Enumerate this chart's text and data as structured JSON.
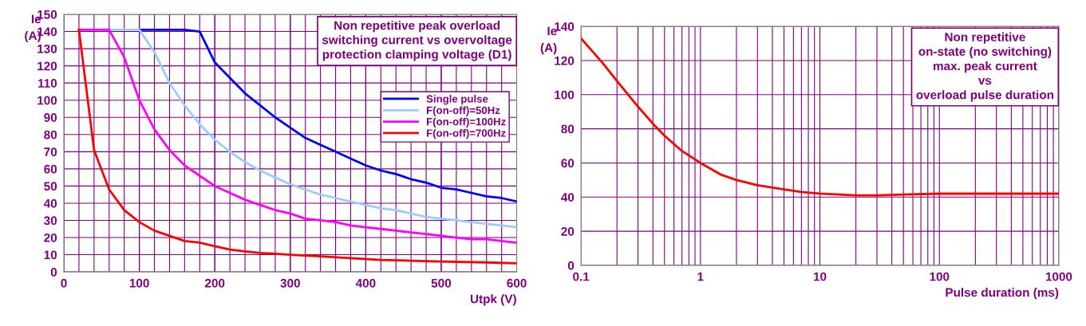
{
  "chart_data": [
    {
      "type": "line",
      "xlabel": "Utpk (V)",
      "ylabel": "Ie\n(A)",
      "xlim": [
        0,
        600
      ],
      "ylim": [
        0,
        150
      ],
      "xticks": [
        0,
        100,
        200,
        300,
        400,
        500,
        600
      ],
      "yticks": [
        0,
        10,
        20,
        30,
        40,
        50,
        60,
        70,
        80,
        90,
        100,
        110,
        120,
        130,
        140,
        150
      ],
      "grid": true,
      "legend": "top right",
      "marker": "none",
      "line_style": "solid",
      "annotations": [
        "Non repetitive peak overload\nswitching current vs overvoltage\nprotection clamping voltage (D1)"
      ],
      "series": [
        {
          "name": "Single pulse",
          "color": "#0000ff",
          "x": [
            100,
            160,
            180,
            200,
            220,
            240,
            260,
            280,
            300,
            320,
            340,
            360,
            380,
            400,
            420,
            440,
            460,
            480,
            500,
            520,
            540,
            560,
            580,
            600
          ],
          "values": [
            141,
            141,
            140,
            122,
            113,
            104,
            97,
            90,
            84,
            78,
            74,
            70,
            66,
            62,
            59,
            57,
            54,
            52,
            49,
            48,
            46,
            44,
            43,
            41
          ]
        },
        {
          "name": "F(on-off)=50Hz",
          "color": "#99ccff",
          "x": [
            60,
            100,
            120,
            140,
            160,
            180,
            200,
            220,
            240,
            260,
            280,
            300,
            320,
            340,
            360,
            380,
            400,
            420,
            440,
            460,
            480,
            500,
            520,
            540,
            560,
            580,
            600
          ],
          "values": [
            141,
            141,
            128,
            110,
            97,
            86,
            77,
            70,
            64,
            59,
            55,
            51,
            48,
            45,
            43,
            41,
            39,
            37,
            36,
            34,
            32,
            31,
            30,
            29,
            28,
            27,
            26
          ]
        },
        {
          "name": "F(on-off)=100Hz",
          "color": "#ff00ff",
          "x": [
            20,
            60,
            80,
            100,
            120,
            140,
            160,
            180,
            200,
            220,
            240,
            260,
            280,
            300,
            320,
            340,
            360,
            380,
            400,
            420,
            440,
            460,
            480,
            500,
            520,
            540,
            560,
            580,
            600
          ],
          "values": [
            141,
            141,
            125,
            100,
            83,
            71,
            62,
            56,
            50,
            46,
            42,
            39,
            36,
            34,
            31,
            30,
            29,
            27,
            26,
            25,
            24,
            23,
            22,
            21,
            20,
            19,
            19,
            18,
            17
          ]
        },
        {
          "name": "F(on-off)=700Hz",
          "color": "#ff0000",
          "x": [
            20,
            40,
            60,
            80,
            100,
            120,
            140,
            160,
            180,
            200,
            220,
            240,
            260,
            280,
            300,
            340,
            380,
            420,
            460,
            500,
            560,
            600
          ],
          "values": [
            141,
            71,
            48,
            36,
            29,
            24,
            21,
            18,
            17,
            15,
            13,
            12,
            11,
            10.5,
            10,
            9,
            8,
            7,
            6.5,
            6,
            5.5,
            5
          ]
        }
      ]
    },
    {
      "type": "line",
      "xlabel": "Pulse duration (ms)",
      "ylabel": "Ie\n(A)",
      "log": "x",
      "xlim": [
        0.1,
        1000
      ],
      "ylim": [
        0,
        140
      ],
      "xticks": [
        0.1,
        1,
        10,
        100,
        1000
      ],
      "yticks": [
        0,
        20,
        40,
        60,
        80,
        100,
        120,
        140
      ],
      "grid": true,
      "marker": "none",
      "line_style": "solid",
      "annotations": [
        "Non repetitive\non-state (no switching)\nmax. peak current\nvs\noverload pulse duration"
      ],
      "series": [
        {
          "color": "#ff0000",
          "x": [
            0.1,
            0.15,
            0.2,
            0.3,
            0.4,
            0.5,
            0.7,
            1,
            1.5,
            2,
            3,
            5,
            7,
            10,
            20,
            30,
            50,
            100,
            1000
          ],
          "values": [
            133,
            119,
            108,
            93,
            83,
            76,
            67,
            60,
            53,
            50,
            47,
            44.5,
            43,
            42,
            41,
            41,
            41.5,
            42,
            42
          ]
        }
      ]
    }
  ]
}
